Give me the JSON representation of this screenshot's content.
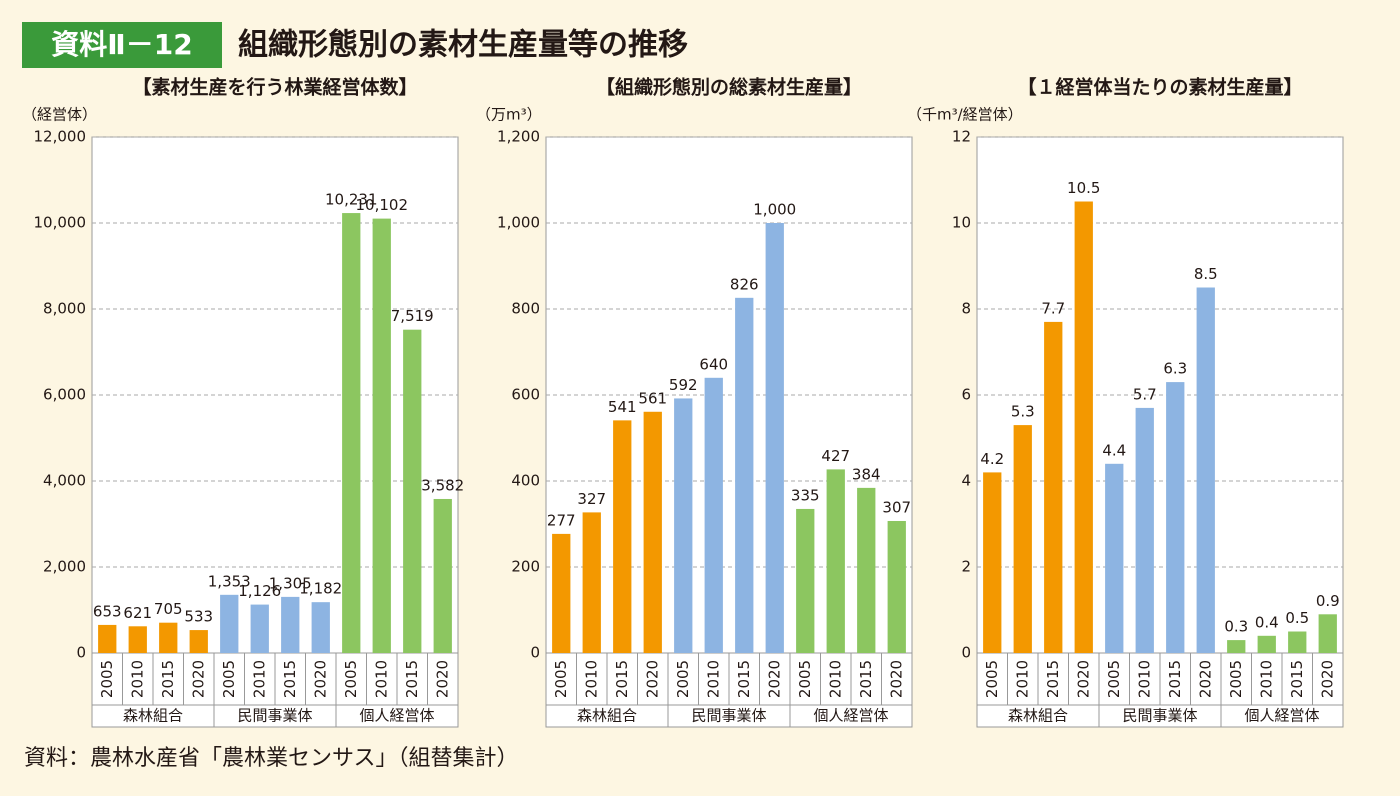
{
  "header": {
    "label": "資料Ⅱ－12",
    "title": "組織形態別の素材生産量等の推移"
  },
  "source": "資料：農林水産省「農林業センサス」（組替集計）",
  "chart_data": [
    {
      "type": "bar",
      "title": "【素材生産を行う林業経営体数】",
      "y_label": "（経営体）",
      "categories": [
        "2005",
        "2010",
        "2015",
        "2020",
        "2005",
        "2010",
        "2015",
        "2020",
        "2005",
        "2010",
        "2015",
        "2020"
      ],
      "groups": [
        "森林組合",
        "民間事業体",
        "個人経営体"
      ],
      "colors": [
        "#f39800",
        "#8db4e2",
        "#8cc660"
      ],
      "values": [
        653,
        621,
        705,
        533,
        1353,
        1126,
        1305,
        1182,
        10231,
        10102,
        7519,
        3582
      ],
      "value_labels": [
        "653",
        "621",
        "705",
        "533",
        "1,353",
        "1,126",
        "1,305",
        "1,182",
        "10,231",
        "10,102",
        "7,519",
        "3,582"
      ],
      "ylim": [
        0,
        12000
      ],
      "yticks": [
        0,
        {
          "value": 2000,
          "label": "2,000"
        },
        {
          "value": 4000,
          "label": "4,000"
        },
        {
          "value": 6000,
          "label": "6,000"
        },
        {
          "value": 8000,
          "label": "8,000"
        },
        {
          "value": 10000,
          "label": "10,000"
        },
        {
          "value": 12000,
          "label": "12,000"
        }
      ],
      "grid": true
    },
    {
      "type": "bar",
      "title": "【組織形態別の総素材生産量】",
      "y_label": "（万m³）",
      "categories": [
        "2005",
        "2010",
        "2015",
        "2020",
        "2005",
        "2010",
        "2015",
        "2020",
        "2005",
        "2010",
        "2015",
        "2020"
      ],
      "groups": [
        "森林組合",
        "民間事業体",
        "個人経営体"
      ],
      "colors": [
        "#f39800",
        "#8db4e2",
        "#8cc660"
      ],
      "values": [
        277,
        327,
        541,
        561,
        592,
        640,
        826,
        1000,
        335,
        427,
        384,
        307
      ],
      "value_labels": [
        "277",
        "327",
        "541",
        "561",
        "592",
        "640",
        "826",
        "1,000",
        "335",
        "427",
        "384",
        "307"
      ],
      "ylim": [
        0,
        1200
      ],
      "yticks": [
        0,
        200,
        400,
        600,
        800,
        {
          "value": 1000,
          "label": "1,000"
        },
        {
          "value": 1200,
          "label": "1,200"
        }
      ],
      "grid": true
    },
    {
      "type": "bar",
      "title": "【１経営体当たりの素材生産量】",
      "y_label": "（千m³/経営体）",
      "categories": [
        "2005",
        "2010",
        "2015",
        "2020",
        "2005",
        "2010",
        "2015",
        "2020",
        "2005",
        "2010",
        "2015",
        "2020"
      ],
      "groups": [
        "森林組合",
        "民間事業体",
        "個人経営体"
      ],
      "colors": [
        "#f39800",
        "#8db4e2",
        "#8cc660"
      ],
      "values": [
        4.2,
        5.3,
        7.7,
        10.5,
        4.4,
        5.7,
        6.3,
        8.5,
        0.3,
        0.4,
        0.5,
        0.9
      ],
      "ylim": [
        0,
        12
      ],
      "yticks": [
        0,
        2,
        4,
        6,
        8,
        10,
        12
      ],
      "grid": true
    }
  ]
}
